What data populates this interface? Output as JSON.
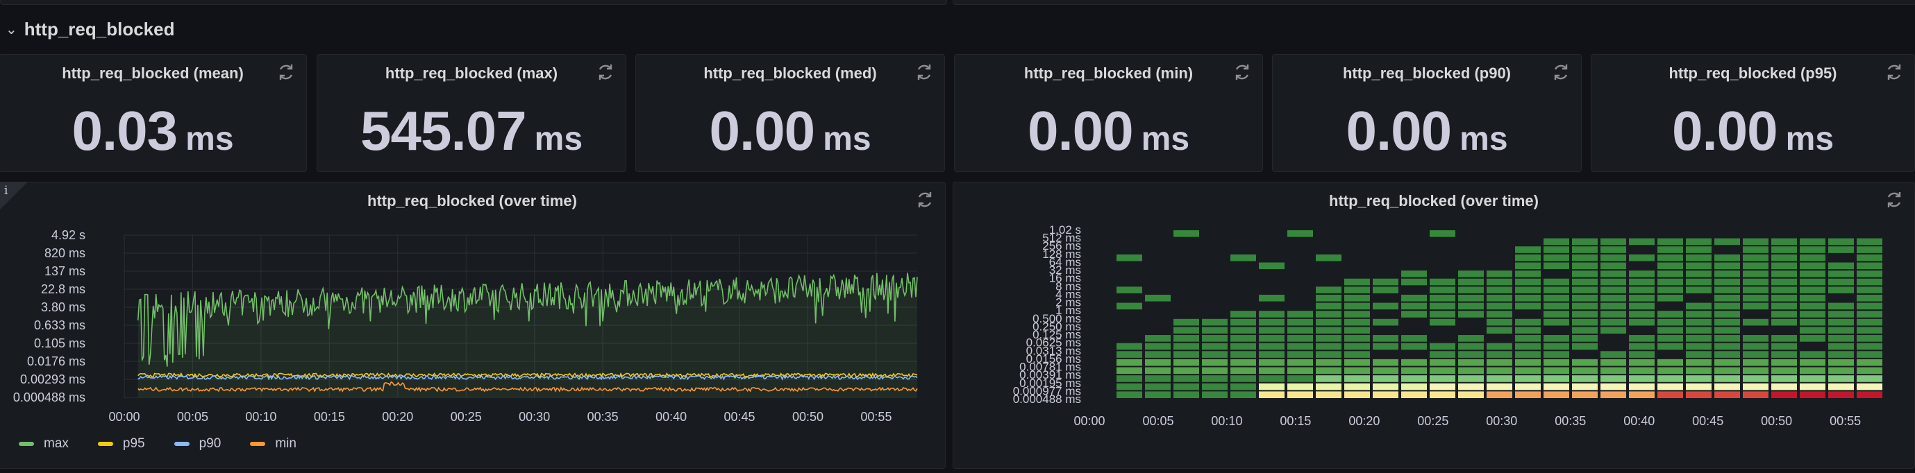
{
  "colors": {
    "background": "#111217",
    "panel": "#181b1f",
    "text": "#ccccdc",
    "max": "#73bf69",
    "p95": "#f2cc0c",
    "p90": "#8ab8ff",
    "min": "#ff9830"
  },
  "row": {
    "title": "http_req_blocked",
    "chevron": "⌄"
  },
  "stats": [
    {
      "title": "http_req_blocked (mean)",
      "value": "0.03",
      "unit": "ms"
    },
    {
      "title": "http_req_blocked (max)",
      "value": "545.07",
      "unit": "ms"
    },
    {
      "title": "http_req_blocked (med)",
      "value": "0.00",
      "unit": "ms"
    },
    {
      "title": "http_req_blocked (min)",
      "value": "0.00",
      "unit": "ms"
    },
    {
      "title": "http_req_blocked (p90)",
      "value": "0.00",
      "unit": "ms"
    },
    {
      "title": "http_req_blocked (p95)",
      "value": "0.00",
      "unit": "ms"
    }
  ],
  "timeseries_panel": {
    "title": "http_req_blocked (over time)",
    "info": "i",
    "legend": [
      {
        "name": "max",
        "color": "#73bf69"
      },
      {
        "name": "p95",
        "color": "#f2cc0c"
      },
      {
        "name": "p90",
        "color": "#8ab8ff"
      },
      {
        "name": "min",
        "color": "#ff9830"
      }
    ]
  },
  "heatmap_panel": {
    "title": "http_req_blocked (over time)"
  },
  "chart_data": [
    {
      "type": "line",
      "title": "http_req_blocked (over time)",
      "yscale": "log",
      "y_tick_labels": [
        "4.92 s",
        "820 ms",
        "137 ms",
        "22.8 ms",
        "3.80 ms",
        "0.633 ms",
        "0.105 ms",
        "0.0176 ms",
        "0.00293 ms",
        "0.000488 ms"
      ],
      "x_tick_labels": [
        "00:00",
        "00:05",
        "00:10",
        "00:15",
        "00:20",
        "00:25",
        "00:30",
        "00:35",
        "00:40",
        "00:45",
        "00:50",
        "00:55"
      ],
      "x_range_min": [
        0,
        58
      ],
      "series": [
        {
          "name": "max",
          "color": "#73bf69",
          "start_min": 1,
          "approx_range_ms": [
            0.01,
            800
          ],
          "typical_ms": 10
        },
        {
          "name": "p95",
          "color": "#f2cc0c",
          "start_min": 1,
          "typical_ms": 0.0045
        },
        {
          "name": "p90",
          "color": "#8ab8ff",
          "start_min": 1,
          "typical_ms": 0.0036
        },
        {
          "name": "min",
          "color": "#ff9830",
          "start_min": 1,
          "typical_ms": 0.0011
        }
      ],
      "grid": true,
      "legend_position": "bottom-left"
    },
    {
      "type": "heatmap",
      "title": "http_req_blocked (over time)",
      "y_buckets": [
        "1.02 s",
        "512 ms",
        "256 ms",
        "128 ms",
        "64 ms",
        "32 ms",
        "16 ms",
        "8 ms",
        "4 ms",
        "2 ms",
        "1 ms",
        "0.500 ms",
        "0.250 ms",
        "0.125 ms",
        "0.0625 ms",
        "0.0313 ms",
        "0.0156 ms",
        "0.00781 ms",
        "0.00391 ms",
        "0.00195 ms",
        "0.000977 ms",
        "0.000488 ms"
      ],
      "x_tick_labels": [
        "00:00",
        "00:05",
        "00:10",
        "00:15",
        "00:20",
        "00:25",
        "00:30",
        "00:35",
        "00:40",
        "00:45",
        "00:50",
        "00:55"
      ],
      "columns": 28,
      "grid": true
    }
  ]
}
